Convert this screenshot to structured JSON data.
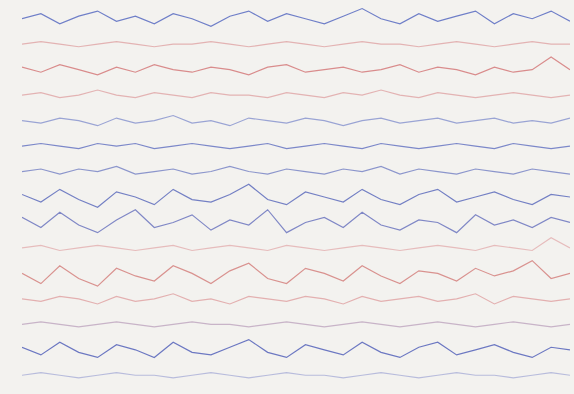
{
  "chart_data": {
    "type": "line",
    "tick_labels": false,
    "x": [
      0,
      1,
      2,
      3,
      4,
      5,
      6,
      7,
      8,
      9,
      10,
      11,
      12,
      13,
      14,
      15,
      16,
      17,
      18,
      19,
      20,
      21,
      22,
      23,
      24,
      25,
      26,
      27,
      28,
      29
    ],
    "xlim": [
      0,
      29
    ],
    "ylim": [
      0,
      150
    ],
    "series": [
      {
        "color": "#6f7fc8",
        "values": [
          145,
          147,
          143,
          146,
          148,
          144,
          146,
          143,
          147,
          145,
          142,
          146,
          148,
          144,
          147,
          145,
          143,
          146,
          149,
          145,
          143,
          147,
          144,
          146,
          148,
          143,
          147,
          145,
          148,
          144
        ]
      },
      {
        "color": "#e3b3b3",
        "values": [
          135,
          136,
          135,
          134,
          135,
          136,
          135,
          134,
          135,
          135,
          136,
          135,
          134,
          135,
          136,
          135,
          134,
          135,
          136,
          135,
          135,
          134,
          135,
          136,
          135,
          134,
          135,
          136,
          135,
          135
        ]
      },
      {
        "color": "#d98c8c",
        "values": [
          126,
          124,
          127,
          125,
          123,
          126,
          124,
          127,
          125,
          124,
          126,
          125,
          123,
          126,
          127,
          124,
          125,
          126,
          124,
          125,
          127,
          124,
          126,
          125,
          123,
          126,
          124,
          125,
          130,
          125
        ]
      },
      {
        "color": "#e3b3b3",
        "values": [
          115,
          116,
          114,
          115,
          117,
          115,
          114,
          116,
          115,
          114,
          116,
          115,
          115,
          114,
          116,
          115,
          114,
          116,
          115,
          117,
          115,
          114,
          116,
          115,
          114,
          115,
          116,
          115,
          114,
          115
        ]
      },
      {
        "color": "#9aa4d4",
        "values": [
          105,
          104,
          106,
          105,
          103,
          106,
          104,
          105,
          107,
          104,
          105,
          103,
          106,
          105,
          104,
          106,
          105,
          103,
          105,
          106,
          104,
          105,
          106,
          104,
          105,
          106,
          104,
          105,
          104,
          106
        ]
      },
      {
        "color": "#7c88c9",
        "values": [
          95,
          96,
          95,
          94,
          96,
          95,
          96,
          94,
          95,
          96,
          95,
          94,
          95,
          96,
          94,
          95,
          96,
          95,
          94,
          96,
          95,
          94,
          95,
          96,
          95,
          94,
          96,
          95,
          94,
          95
        ]
      },
      {
        "color": "#8c96cc",
        "values": [
          85,
          86,
          84,
          86,
          85,
          87,
          84,
          85,
          86,
          84,
          85,
          87,
          85,
          84,
          86,
          85,
          84,
          86,
          85,
          87,
          84,
          86,
          85,
          84,
          86,
          85,
          84,
          86,
          85,
          84
        ]
      },
      {
        "color": "#7480c4",
        "values": [
          76,
          73,
          78,
          74,
          71,
          77,
          75,
          72,
          78,
          74,
          73,
          76,
          80,
          74,
          72,
          77,
          75,
          73,
          78,
          74,
          72,
          76,
          78,
          73,
          75,
          77,
          74,
          72,
          76,
          75
        ]
      },
      {
        "color": "#8088c6",
        "values": [
          67,
          63,
          69,
          64,
          61,
          66,
          70,
          63,
          65,
          68,
          62,
          66,
          64,
          70,
          61,
          65,
          67,
          63,
          69,
          64,
          62,
          66,
          65,
          61,
          68,
          64,
          66,
          63,
          67,
          65
        ]
      },
      {
        "color": "#e6bcbc",
        "values": [
          55,
          56,
          54,
          55,
          56,
          55,
          54,
          55,
          56,
          54,
          55,
          56,
          55,
          54,
          56,
          55,
          54,
          55,
          56,
          55,
          54,
          55,
          56,
          55,
          54,
          56,
          55,
          54,
          59,
          55
        ]
      },
      {
        "color": "#d9928f",
        "values": [
          45,
          41,
          48,
          43,
          40,
          47,
          44,
          42,
          48,
          45,
          41,
          46,
          49,
          43,
          41,
          47,
          45,
          42,
          48,
          44,
          41,
          46,
          45,
          42,
          47,
          44,
          46,
          50,
          43,
          45
        ]
      },
      {
        "color": "#e3b0b0",
        "values": [
          35,
          34,
          36,
          35,
          33,
          36,
          34,
          35,
          37,
          34,
          35,
          33,
          36,
          35,
          34,
          36,
          35,
          33,
          36,
          34,
          35,
          36,
          34,
          35,
          37,
          33,
          36,
          35,
          34,
          35
        ]
      },
      {
        "color": "#c8b4c8",
        "values": [
          25,
          26,
          25,
          24,
          25,
          26,
          25,
          24,
          25,
          26,
          25,
          25,
          24,
          25,
          26,
          25,
          24,
          25,
          26,
          25,
          24,
          25,
          26,
          25,
          24,
          25,
          26,
          25,
          24,
          25
        ]
      },
      {
        "color": "#6c78c2",
        "values": [
          16,
          13,
          18,
          14,
          12,
          17,
          15,
          12,
          18,
          14,
          13,
          16,
          19,
          14,
          12,
          17,
          15,
          13,
          18,
          14,
          12,
          16,
          18,
          13,
          15,
          17,
          14,
          12,
          16,
          15
        ]
      },
      {
        "color": "#b8bcdc",
        "values": [
          5,
          6,
          5,
          4,
          5,
          6,
          5,
          5,
          4,
          5,
          6,
          5,
          4,
          5,
          6,
          5,
          5,
          4,
          5,
          6,
          5,
          4,
          5,
          6,
          5,
          5,
          4,
          5,
          6,
          5
        ]
      }
    ]
  }
}
